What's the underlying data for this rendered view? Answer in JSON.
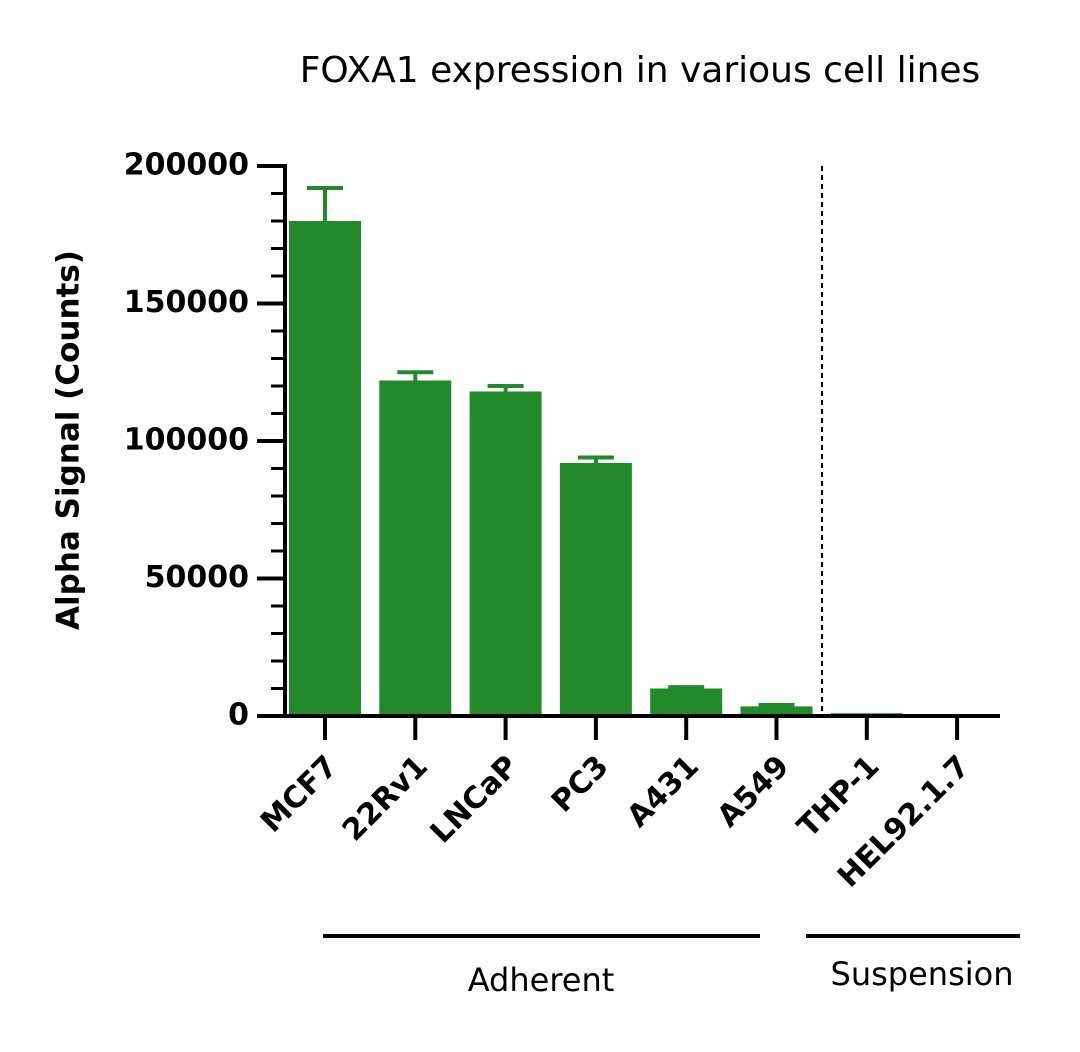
{
  "chart_data": {
    "type": "bar",
    "title": "FOXA1 expression in various cell lines",
    "y_label": "Alpha Signal (Counts)",
    "categories": [
      "MCF7",
      "22Rv1",
      "LNCaP",
      "PC3",
      "A431",
      "A549",
      "THP-1",
      "HEL92.1.7"
    ],
    "values": [
      180000,
      122000,
      118000,
      92000,
      10000,
      3500,
      1000,
      0
    ],
    "errors": [
      12000,
      3000,
      2000,
      2000,
      500,
      500,
      0,
      0
    ],
    "color": "#238a2b",
    "ylim": [
      0,
      200000
    ],
    "yticks": [
      0,
      50000,
      100000,
      150000,
      200000
    ],
    "yminorticks": [
      10000,
      20000,
      30000,
      40000,
      60000,
      70000,
      80000,
      90000,
      110000,
      120000,
      130000,
      140000,
      160000,
      170000,
      180000,
      190000
    ],
    "groups": [
      "Adherent",
      "Suspension"
    ]
  }
}
